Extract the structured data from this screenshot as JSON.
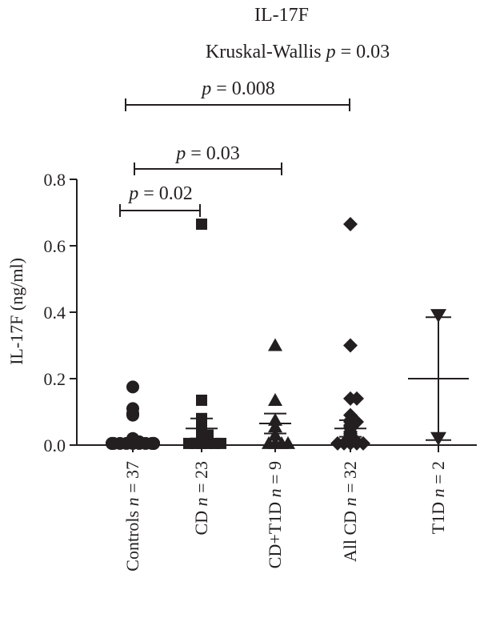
{
  "chart_data": {
    "type": "scatter",
    "title": "IL-17F",
    "subtitle": {
      "text": "Kruskal-Wallis ",
      "p_symbol": "p",
      "rest": " = 0.03"
    },
    "ylabel": "IL-17F (ng/ml)",
    "ylim": [
      0,
      0.8
    ],
    "yticks": [
      {
        "value": 0.0,
        "label": "0.0"
      },
      {
        "value": 0.2,
        "label": "0.2"
      },
      {
        "value": 0.4,
        "label": "0.4"
      },
      {
        "value": 0.6,
        "label": "0.6"
      },
      {
        "value": 0.8,
        "label": "0.8"
      }
    ],
    "grid": false,
    "legend": "none",
    "categories": [
      {
        "name": "Controls",
        "n_symbol": "n",
        "n_text": " = 37",
        "marker": "circle",
        "values": [
          0.175,
          0.11,
          0.095,
          0.09,
          0.02,
          0.015,
          0.01,
          0.01,
          0.005,
          0.005,
          0.005,
          0.005,
          0.005,
          0.005,
          0.005,
          0.005,
          0.005,
          0.005,
          0.005,
          0.005
        ],
        "mean": null,
        "err_low": null,
        "err_high": null
      },
      {
        "name": "CD",
        "n_symbol": "n",
        "n_text": " = 23",
        "marker": "square",
        "values": [
          0.665,
          0.135,
          0.08,
          0.075,
          0.07,
          0.045,
          0.04,
          0.035,
          0.03,
          0.03,
          0.02,
          0.015,
          0.01,
          0.01,
          0.005,
          0.005,
          0.005,
          0.005,
          0.005,
          0.005
        ],
        "mean": 0.05,
        "err_low": 0.02,
        "err_high": 0.08
      },
      {
        "name": "CD+T1D",
        "n_symbol": "n",
        "n_text": " = 9",
        "marker": "triangle-up",
        "values": [
          0.3,
          0.135,
          0.075,
          0.055,
          0.03,
          0.005,
          0.005,
          0.005,
          0.005
        ],
        "mean": 0.065,
        "err_low": 0.035,
        "err_high": 0.095
      },
      {
        "name": "All CD",
        "n_symbol": "n",
        "n_text": " = 32",
        "marker": "diamond",
        "values": [
          0.665,
          0.3,
          0.14,
          0.14,
          0.09,
          0.075,
          0.07,
          0.07,
          0.06,
          0.055,
          0.05,
          0.04,
          0.035,
          0.03,
          0.025,
          0.02,
          0.015,
          0.01,
          0.01,
          0.005,
          0.005,
          0.005,
          0.005,
          0.005
        ],
        "mean": 0.05,
        "err_low": 0.025,
        "err_high": 0.075
      },
      {
        "name": "T1D",
        "n_symbol": "n",
        "n_text": " = 2",
        "marker": "triangle-down",
        "values": [
          0.39,
          0.02
        ],
        "mean": 0.2,
        "err_low": 0.015,
        "err_high": 0.385
      }
    ],
    "annotations": [
      {
        "p_symbol": "p",
        "text": " = 0.008",
        "from": 0,
        "to": 3
      },
      {
        "p_symbol": "p",
        "text": " = 0.03",
        "from": 0,
        "to": 2
      },
      {
        "p_symbol": "p",
        "text": " = 0.02",
        "from": 0,
        "to": 1
      }
    ]
  }
}
